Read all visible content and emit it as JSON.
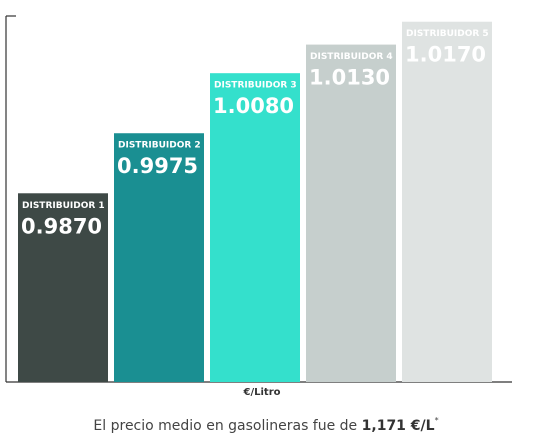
{
  "chart_data": {
    "type": "bar",
    "categories": [
      "DISTRIBUIDOR 1",
      "DISTRIBUIDOR 2",
      "DISTRIBUIDOR 3",
      "DISTRIBUIDOR 4",
      "DISTRIBUIDOR 5"
    ],
    "values": [
      0.987,
      0.9975,
      1.008,
      1.013,
      1.017
    ],
    "value_labels": [
      "0.9870",
      "0.9975",
      "1.0080",
      "1.0130",
      "1.0170"
    ],
    "colors": [
      "#3e4946",
      "#1a8f92",
      "#34e0cc",
      "#c6cfcd",
      "#dfe3e2"
    ],
    "ylim": [
      0.954,
      1.018
    ],
    "xlabel": "€/Litro",
    "caption": "El precio medio en gasolineras fue de",
    "caption_value": "1,171 €/L",
    "caption_mark": "*"
  }
}
